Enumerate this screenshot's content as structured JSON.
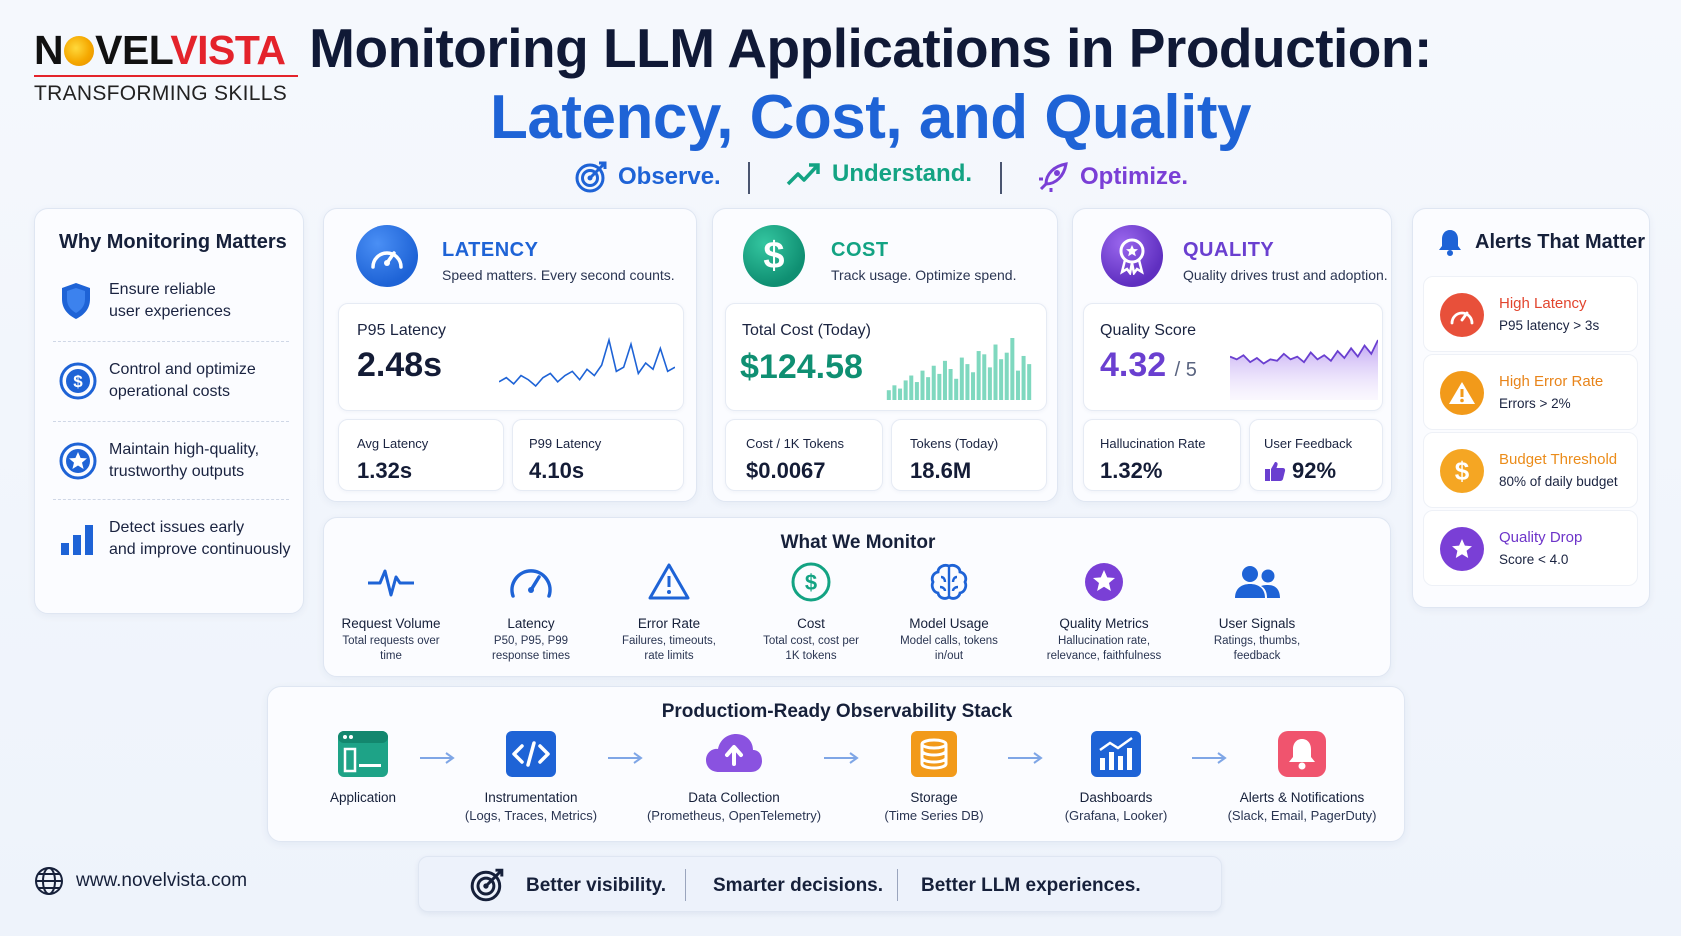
{
  "brand": {
    "logo_left": "N",
    "logo_mid": "VEL",
    "logo_right": "VISTA",
    "tagline": "TRANSFORMING SKILLS"
  },
  "title": {
    "line1": "Monitoring LLM Applications in Production:",
    "line2": "Latency, Cost, and Quality"
  },
  "taglines": [
    {
      "label": "Observe.",
      "color": "#1e63d6",
      "icon": "target-icon"
    },
    {
      "label": "Understand.",
      "color": "#13a383",
      "icon": "trend-up-icon"
    },
    {
      "label": "Optimize.",
      "color": "#7a3fd6",
      "icon": "rocket-icon"
    }
  ],
  "why": {
    "title": "Why Monitoring Matters",
    "items": [
      {
        "line1": "Ensure reliable",
        "line2": "user experiences",
        "icon": "shield-icon"
      },
      {
        "line1": "Control and optimize",
        "line2": "operational costs",
        "icon": "dollar-icon"
      },
      {
        "line1": "Maintain high-quality,",
        "line2": "trustworthy outputs",
        "icon": "star-badge-icon"
      },
      {
        "line1": "Detect issues early",
        "line2": "and improve continuously",
        "icon": "bar-chart-icon"
      }
    ]
  },
  "latency": {
    "title": "LATENCY",
    "subtitle": "Speed matters. Every second counts.",
    "main_label": "P95 Latency",
    "main_value": "2.48s",
    "stat1_label": "Avg Latency",
    "stat1_value": "1.32s",
    "stat2_label": "P99 Latency",
    "stat2_value": "4.10s",
    "color": "#1e63d6",
    "sparkline": [
      22,
      24,
      21,
      25,
      23,
      20,
      24,
      26,
      22,
      25,
      27,
      23,
      28,
      25,
      30,
      42,
      27,
      29,
      40,
      26,
      31,
      28,
      38,
      27,
      29
    ]
  },
  "cost": {
    "title": "COST",
    "subtitle": "Track usage. Optimize spend.",
    "main_label": "Total Cost (Today)",
    "main_value": "$124.58",
    "stat1_label": "Cost / 1K Tokens",
    "stat1_value": "$0.0067",
    "stat2_label": "Tokens (Today)",
    "stat2_value": "18.6M",
    "color": "#13a383",
    "bars": [
      6,
      9,
      7,
      12,
      15,
      11,
      18,
      14,
      21,
      16,
      24,
      19,
      13,
      26,
      22,
      17,
      30,
      28,
      20,
      34,
      25,
      29,
      38,
      18,
      27,
      22
    ]
  },
  "quality": {
    "title": "QUALITY",
    "subtitle": "Quality drives trust and adoption.",
    "main_label": "Quality Score",
    "main_value": "4.32",
    "main_suffix": "/ 5",
    "stat1_label": "Hallucination Rate",
    "stat1_value": "1.32%",
    "stat2_label": "User Feedback",
    "stat2_value": "92%",
    "color": "#6a3fd0",
    "area": [
      14,
      12,
      15,
      10,
      13,
      9,
      12,
      11,
      16,
      12,
      14,
      10,
      17,
      12,
      15,
      11,
      18,
      13,
      20,
      14,
      22,
      16,
      26
    ]
  },
  "alerts": {
    "title": "Alerts That Matter",
    "items": [
      {
        "title": "High Latency",
        "sub": "P95 latency > 3s",
        "color": "#e8503a",
        "title_color": "#e2452e",
        "icon": "speedometer-icon"
      },
      {
        "title": "High Error Rate",
        "sub": "Errors > 2%",
        "color": "#f29a1a",
        "title_color": "#e8841a",
        "icon": "warning-icon"
      },
      {
        "title": "Budget Threshold",
        "sub": "80% of daily budget",
        "color": "#f5a623",
        "title_color": "#eb8c1a",
        "icon": "dollar-icon"
      },
      {
        "title": "Quality Drop",
        "sub": "Score < 4.0",
        "color": "#7a3fd6",
        "title_color": "#6d34c9",
        "icon": "star-icon"
      }
    ]
  },
  "monitor": {
    "title": "What We Monitor",
    "items": [
      {
        "label": "Request Volume",
        "desc1": "Total requests over",
        "desc2": "time",
        "icon": "pulse-icon"
      },
      {
        "label": "Latency",
        "desc1": "P50, P95, P99",
        "desc2": "response times",
        "icon": "gauge-icon"
      },
      {
        "label": "Error Rate",
        "desc1": "Failures, timeouts,",
        "desc2": "rate limits",
        "icon": "warning-icon"
      },
      {
        "label": "Cost",
        "desc1": "Total cost, cost per",
        "desc2": "1K tokens",
        "icon": "dollar-icon"
      },
      {
        "label": "Model Usage",
        "desc1": "Model calls, tokens",
        "desc2": "in/out",
        "icon": "brain-icon"
      },
      {
        "label": "Quality Metrics",
        "desc1": "Hallucination rate,",
        "desc2": "relevance, faithfulness",
        "icon": "star-badge-icon"
      },
      {
        "label": "User Signals",
        "desc1": "Ratings, thumbs,",
        "desc2": "feedback",
        "icon": "users-icon"
      }
    ]
  },
  "stack": {
    "title": "Productiom-Ready Observability Stack",
    "items": [
      {
        "label": "Application",
        "desc": "",
        "icon": "app-window-icon",
        "color": "#1ea387"
      },
      {
        "label": "Instrumentation",
        "desc": "(Logs, Traces, Metrics)",
        "icon": "code-icon",
        "color": "#1e63d6"
      },
      {
        "label": "Data Collection",
        "desc": "(Prometheus, OpenTelemetry)",
        "icon": "cloud-upload-icon",
        "color": "#8a52e0"
      },
      {
        "label": "Storage",
        "desc": "(Time Series DB)",
        "icon": "database-icon",
        "color": "#f29a1a"
      },
      {
        "label": "Dashboards",
        "desc": "(Grafana, Looker)",
        "icon": "dashboard-icon",
        "color": "#1e63d6"
      },
      {
        "label": "Alerts & Notifications",
        "desc": "(Slack, Email, PagerDuty)",
        "icon": "bell-icon",
        "color": "#f0546e"
      }
    ]
  },
  "footer": {
    "website": "www.novelvista.com",
    "msg1": "Better visibility.",
    "msg2": "Smarter decisions.",
    "msg3": "Better LLM experiences."
  }
}
